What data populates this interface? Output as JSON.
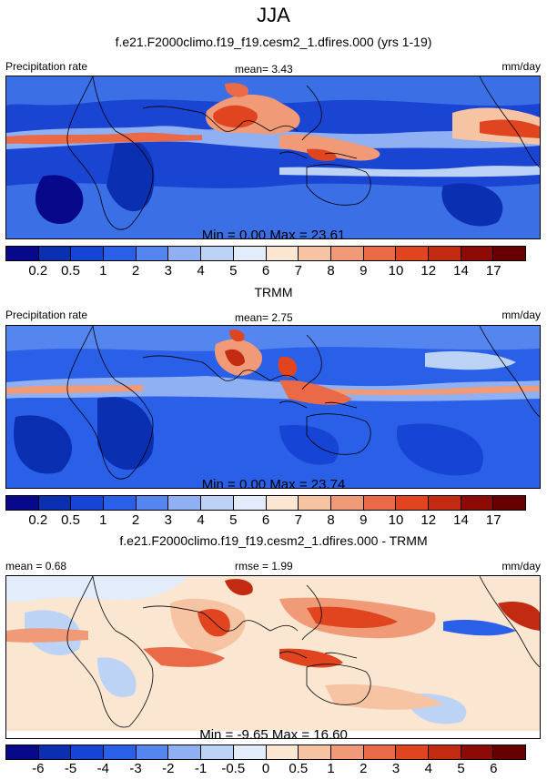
{
  "title": "JJA",
  "panels": [
    {
      "subtitle": "f.e21.F2000climo.f19_f19.cesm2_1.dfires.000 (yrs 1-19)",
      "left_label": "Precipitation rate",
      "center_label": "mean=   3.43",
      "right_label": "mm/day",
      "stats": "Min =   0.00 Max =  23.61",
      "cbar_labels": [
        "0.2",
        "0.5",
        "1",
        "2",
        "3",
        "4",
        "5",
        "6",
        "7",
        "8",
        "9",
        "10",
        "12",
        "14",
        "17"
      ]
    },
    {
      "subtitle": "TRMM",
      "left_label": "Precipitation rate",
      "center_label": "mean=   2.75",
      "right_label": "mm/day",
      "stats": "Min =   0.00 Max =  23.74",
      "cbar_labels": [
        "0.2",
        "0.5",
        "1",
        "2",
        "3",
        "4",
        "5",
        "6",
        "7",
        "8",
        "9",
        "10",
        "12",
        "14",
        "17"
      ]
    },
    {
      "subtitle": "f.e21.F2000climo.f19_f19.cesm2_1.dfires.000 - TRMM",
      "left_label": "mean =   0.68",
      "center_label": "rmse =   1.99",
      "right_label": "mm/day",
      "stats": "Min =  -9.65 Max =  16.60",
      "cbar_labels": [
        "-6",
        "-5",
        "-4",
        "-3",
        "-2",
        "-1",
        "-0.5",
        "0",
        "0.5",
        "1",
        "2",
        "3",
        "4",
        "5",
        "6"
      ]
    }
  ],
  "colors": [
    "#08088a",
    "#0a2fb0",
    "#1644d4",
    "#2a5fe8",
    "#5585ee",
    "#8fb0f2",
    "#bdd3f5",
    "#e2ecfa",
    "#fbe6d2",
    "#f6c3a3",
    "#f09a78",
    "#ea6a48",
    "#e0451f",
    "#c22a12",
    "#8e0a05",
    "#660000"
  ]
}
